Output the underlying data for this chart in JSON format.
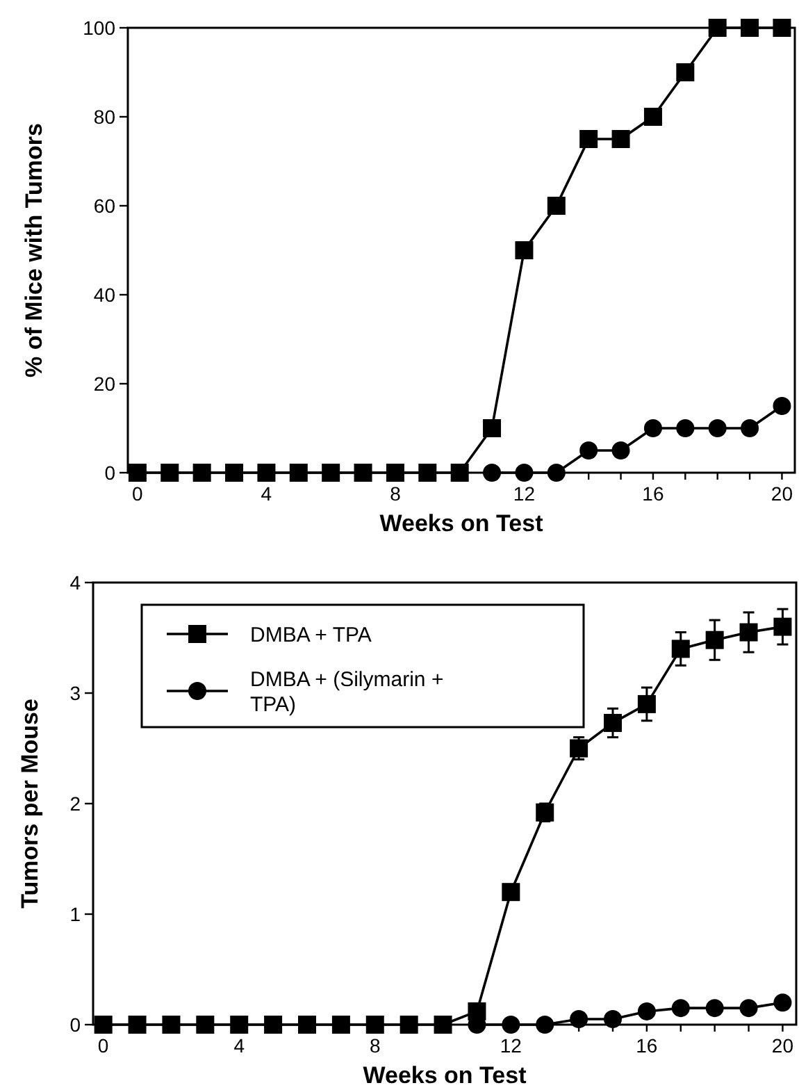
{
  "chart_data": [
    {
      "type": "line",
      "xlabel": "Weeks on Test",
      "ylabel": "% of Mice with Tumors",
      "x": [
        0,
        1,
        2,
        3,
        4,
        5,
        6,
        7,
        8,
        9,
        10,
        11,
        12,
        13,
        14,
        15,
        16,
        17,
        18,
        19,
        20
      ],
      "xlim": [
        -0.3,
        20.4
      ],
      "xticks": [
        0,
        {
          "value": 1,
          "label": null
        },
        {
          "value": 2,
          "label": null
        },
        {
          "value": 3,
          "label": null
        },
        4,
        {
          "value": 5,
          "label": null
        },
        {
          "value": 6,
          "label": null
        },
        {
          "value": 7,
          "label": null
        },
        8,
        {
          "value": 9,
          "label": null
        },
        {
          "value": 10,
          "label": null
        },
        {
          "value": 11,
          "label": null
        },
        12,
        {
          "value": 13,
          "label": null
        },
        {
          "value": 14,
          "label": null
        },
        {
          "value": 15,
          "label": null
        },
        16,
        {
          "value": 17,
          "label": null
        },
        {
          "value": 18,
          "label": null
        },
        {
          "value": 19,
          "label": null
        },
        20
      ],
      "ylim": [
        0,
        100
      ],
      "yticks": [
        0,
        20,
        40,
        60,
        80,
        100
      ],
      "grid": false,
      "legend": false,
      "series": [
        {
          "color": "#000000",
          "marker": "square",
          "values": [
            0,
            0,
            0,
            0,
            0,
            0,
            0,
            0,
            0,
            0,
            0,
            10,
            50,
            60,
            75,
            75,
            80,
            90,
            100,
            100,
            100
          ]
        },
        {
          "color": "#000000",
          "marker": "circle",
          "values": [
            null,
            null,
            null,
            null,
            null,
            null,
            null,
            null,
            null,
            null,
            null,
            0,
            0,
            0,
            5,
            5,
            10,
            10,
            10,
            10,
            15
          ]
        }
      ]
    },
    {
      "type": "line",
      "xlabel": "Weeks on Test",
      "ylabel": "Tumors per Mouse",
      "x": [
        0,
        1,
        2,
        3,
        4,
        5,
        6,
        7,
        8,
        9,
        10,
        11,
        12,
        13,
        14,
        15,
        16,
        17,
        18,
        19,
        20
      ],
      "xlim": [
        -0.3,
        20.4
      ],
      "xticks": [
        0,
        {
          "value": 1,
          "label": null
        },
        {
          "value": 2,
          "label": null
        },
        {
          "value": 3,
          "label": null
        },
        4,
        {
          "value": 5,
          "label": null
        },
        {
          "value": 6,
          "label": null
        },
        {
          "value": 7,
          "label": null
        },
        8,
        {
          "value": 9,
          "label": null
        },
        {
          "value": 10,
          "label": null
        },
        {
          "value": 11,
          "label": null
        },
        12,
        {
          "value": 13,
          "label": null
        },
        {
          "value": 14,
          "label": null
        },
        {
          "value": 15,
          "label": null
        },
        16,
        {
          "value": 17,
          "label": null
        },
        {
          "value": 18,
          "label": null
        },
        {
          "value": 19,
          "label": null
        },
        20
      ],
      "ylim": [
        0,
        4
      ],
      "yticks": [
        0,
        1,
        2,
        3,
        4
      ],
      "grid": false,
      "legend": "top left",
      "series": [
        {
          "name": "DMBA + TPA",
          "color": "#000000",
          "marker": "square",
          "values": [
            0,
            0,
            0,
            0,
            0,
            0,
            0,
            0,
            0,
            0,
            0,
            0.12,
            1.2,
            1.92,
            2.5,
            2.73,
            2.9,
            3.4,
            3.48,
            3.55,
            3.6
          ],
          "errors": [
            null,
            null,
            null,
            null,
            null,
            null,
            null,
            null,
            null,
            null,
            null,
            null,
            null,
            0.08,
            0.1,
            0.13,
            0.15,
            0.15,
            0.18,
            0.18,
            0.16
          ]
        },
        {
          "name": "DMBA + (Silymarin + TPA)",
          "color": "#000000",
          "marker": "circle",
          "values": [
            null,
            null,
            null,
            null,
            null,
            null,
            null,
            null,
            null,
            null,
            null,
            0,
            0,
            0,
            0.05,
            0.05,
            0.12,
            0.15,
            0.15,
            0.15,
            0.2
          ]
        }
      ]
    }
  ]
}
